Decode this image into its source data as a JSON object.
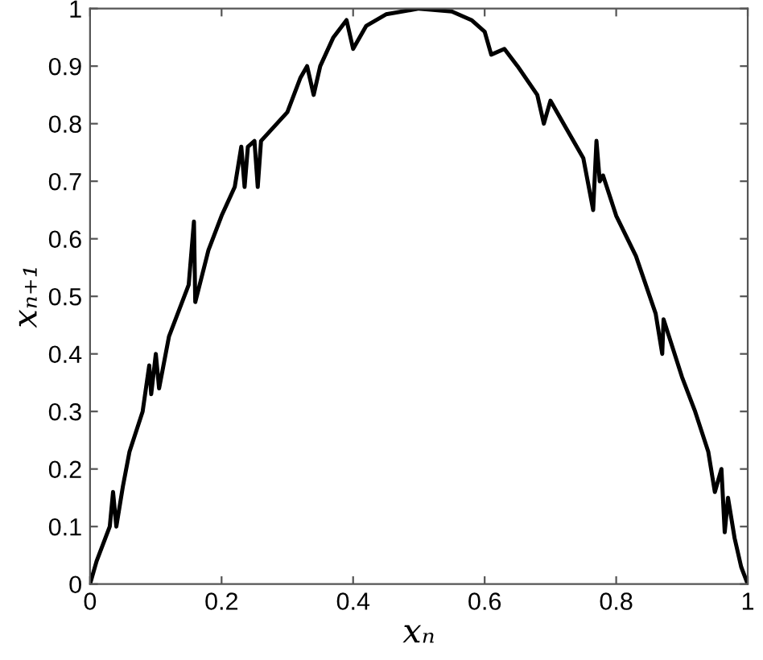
{
  "chart_data": {
    "type": "line",
    "xlabel": "xₙ",
    "ylabel": "xₙ₊₁",
    "x": [
      0,
      0.01,
      0.03,
      0.035,
      0.04,
      0.05,
      0.06,
      0.08,
      0.09,
      0.093,
      0.1,
      0.105,
      0.12,
      0.15,
      0.158,
      0.16,
      0.18,
      0.2,
      0.22,
      0.23,
      0.235,
      0.24,
      0.25,
      0.255,
      0.26,
      0.3,
      0.31,
      0.32,
      0.33,
      0.34,
      0.35,
      0.37,
      0.39,
      0.4,
      0.42,
      0.45,
      0.5,
      0.55,
      0.58,
      0.6,
      0.61,
      0.63,
      0.65,
      0.68,
      0.69,
      0.7,
      0.72,
      0.75,
      0.765,
      0.77,
      0.775,
      0.78,
      0.8,
      0.83,
      0.86,
      0.87,
      0.872,
      0.9,
      0.92,
      0.94,
      0.95,
      0.96,
      0.965,
      0.97,
      0.98,
      0.99,
      1
    ],
    "series": [
      {
        "color": "#000000",
        "values": [
          0,
          0.04,
          0.1,
          0.16,
          0.1,
          0.17,
          0.23,
          0.3,
          0.38,
          0.33,
          0.4,
          0.34,
          0.43,
          0.52,
          0.63,
          0.49,
          0.58,
          0.64,
          0.69,
          0.76,
          0.69,
          0.76,
          0.77,
          0.69,
          0.77,
          0.82,
          0.85,
          0.88,
          0.9,
          0.85,
          0.9,
          0.95,
          0.98,
          0.93,
          0.97,
          0.99,
          1,
          0.995,
          0.98,
          0.96,
          0.92,
          0.93,
          0.9,
          0.85,
          0.8,
          0.84,
          0.8,
          0.74,
          0.65,
          0.77,
          0.7,
          0.71,
          0.64,
          0.57,
          0.47,
          0.4,
          0.46,
          0.36,
          0.3,
          0.23,
          0.16,
          0.2,
          0.09,
          0.15,
          0.08,
          0.03,
          0
        ]
      }
    ],
    "xlim": [
      0,
      1
    ],
    "ylim": [
      0,
      1
    ],
    "xticks": [
      0,
      0.2,
      0.4,
      0.6,
      0.8,
      1
    ],
    "yticks": [
      0,
      0.1,
      0.2,
      0.3,
      0.4,
      0.5,
      0.6,
      0.7,
      0.8,
      0.9,
      1
    ],
    "grid": false,
    "legend": false,
    "marker": "none",
    "line_style": "solid"
  }
}
